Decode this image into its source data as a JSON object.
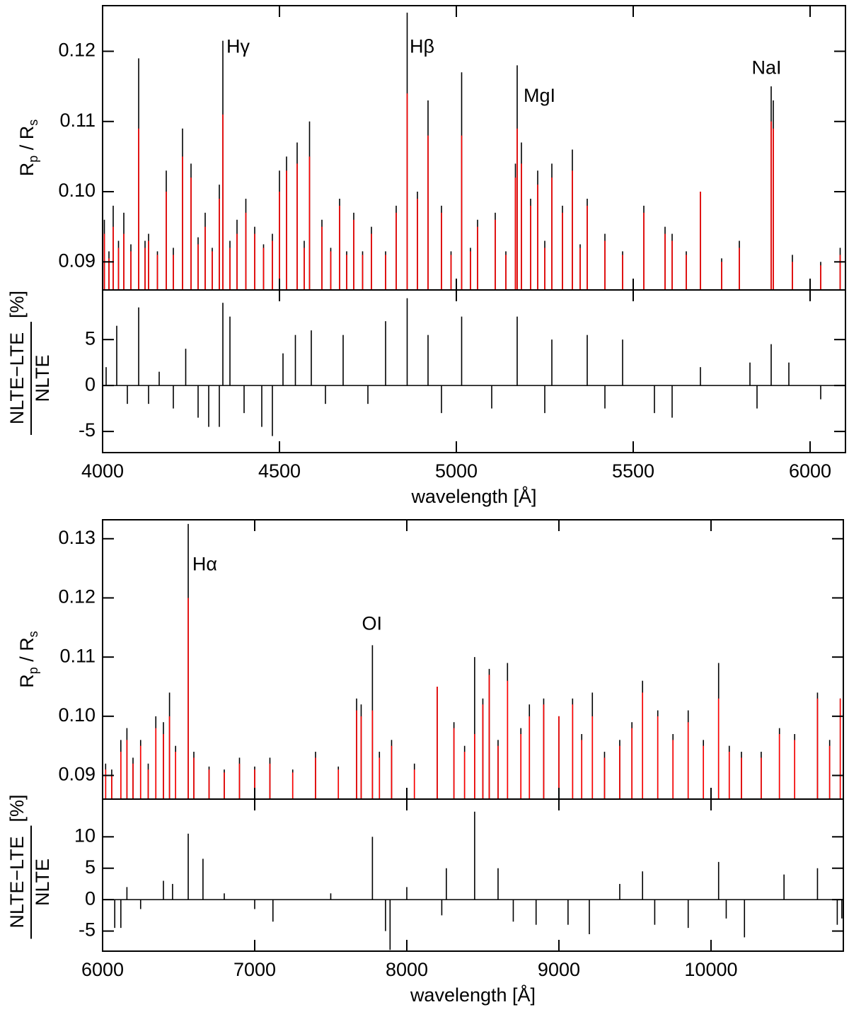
{
  "chart_data": [
    {
      "type": "stem",
      "ylabel": [
        "R",
        "p",
        " / R",
        "s"
      ],
      "xlim": [
        4000,
        6100
      ],
      "ylim": [
        0.086,
        0.1265
      ],
      "yticks": [
        0.09,
        {
          "value": 0.1,
          "label": "0.10"
        },
        0.11,
        0.12
      ],
      "x": [
        4005,
        4018,
        4030,
        4045,
        4060,
        4080,
        4102,
        4120,
        4130,
        4155,
        4180,
        4200,
        4226,
        4250,
        4270,
        4290,
        4310,
        4330,
        4340,
        4360,
        4380,
        4405,
        4430,
        4455,
        4480,
        4500,
        4520,
        4550,
        4570,
        4585,
        4620,
        4645,
        4670,
        4690,
        4710,
        4735,
        4760,
        4800,
        4830,
        4861,
        4890,
        4920,
        4958,
        4985,
        5015,
        5040,
        5060,
        5110,
        5140,
        5167,
        5172,
        5184,
        5210,
        5230,
        5250,
        5270,
        5300,
        5328,
        5350,
        5370,
        5420,
        5470,
        5530,
        5590,
        5610,
        5650,
        5690,
        5750,
        5800,
        5890,
        5896,
        5950,
        6030,
        6085
      ],
      "series": [
        {
          "color": "#000000",
          "values": [
            0.096,
            0.0915,
            0.098,
            0.093,
            0.097,
            0.0925,
            0.119,
            0.093,
            0.094,
            0.0915,
            0.103,
            0.092,
            0.109,
            0.104,
            0.0935,
            0.097,
            0.092,
            0.101,
            0.1215,
            0.093,
            0.096,
            0.099,
            0.095,
            0.0925,
            0.094,
            0.103,
            0.105,
            0.107,
            0.093,
            0.11,
            0.096,
            0.092,
            0.099,
            0.0915,
            0.097,
            0.0915,
            0.095,
            0.0915,
            0.098,
            0.1255,
            0.1,
            0.113,
            0.098,
            0.0915,
            0.117,
            0.092,
            0.096,
            0.097,
            0.0915,
            0.104,
            0.118,
            0.107,
            0.099,
            0.103,
            0.093,
            0.104,
            0.098,
            0.106,
            0.0925,
            0.099,
            0.094,
            0.0915,
            0.098,
            0.095,
            0.094,
            0.0915,
            0.1,
            0.0905,
            0.093,
            0.115,
            0.113,
            0.091,
            0.09,
            0.092
          ]
        },
        {
          "color": "#ff0000",
          "values": [
            0.094,
            0.0905,
            0.095,
            0.092,
            0.094,
            0.0915,
            0.109,
            0.092,
            0.093,
            0.091,
            0.1,
            0.091,
            0.105,
            0.102,
            0.0925,
            0.095,
            0.0915,
            0.099,
            0.111,
            0.092,
            0.094,
            0.097,
            0.094,
            0.092,
            0.093,
            0.1,
            0.103,
            0.104,
            0.092,
            0.105,
            0.095,
            0.0915,
            0.098,
            0.091,
            0.096,
            0.091,
            0.094,
            0.091,
            0.097,
            0.114,
            0.099,
            0.108,
            0.097,
            0.091,
            0.108,
            0.0915,
            0.095,
            0.096,
            0.091,
            0.102,
            0.109,
            0.104,
            0.098,
            0.101,
            0.092,
            0.102,
            0.097,
            0.103,
            0.092,
            0.098,
            0.093,
            0.091,
            0.097,
            0.094,
            0.093,
            0.091,
            0.1,
            0.09,
            0.092,
            0.11,
            0.109,
            0.09,
            0.0895,
            0.091
          ]
        }
      ],
      "annotations": [
        {
          "text": "Hγ",
          "x": 4350,
          "y": 0.1205
        },
        {
          "text": "Hβ",
          "x": 4868,
          "y": 0.1205
        },
        {
          "text": "MgI",
          "x": 5190,
          "y": 0.1135
        },
        {
          "text": "NaI",
          "x": 5835,
          "y": 0.1175
        }
      ]
    },
    {
      "type": "stem",
      "ylabel": {
        "numerator": "NLTE−LTE",
        "denominator": "NLTE",
        "unit": "[%]"
      },
      "xlabel": "wavelength [Å]",
      "xlim": [
        4000,
        6100
      ],
      "ylim": [
        -7.3,
        10.4
      ],
      "xticks": [
        4000,
        4500,
        5000,
        5500,
        6000
      ],
      "yticks": [
        -5,
        0,
        5
      ],
      "x": [
        4010,
        4040,
        4070,
        4102,
        4130,
        4160,
        4200,
        4235,
        4270,
        4300,
        4330,
        4340,
        4360,
        4400,
        4450,
        4480,
        4510,
        4545,
        4590,
        4630,
        4680,
        4750,
        4800,
        4861,
        4920,
        4958,
        5015,
        5100,
        5172,
        5250,
        5270,
        5370,
        5420,
        5470,
        5560,
        5610,
        5690,
        5830,
        5850,
        5890,
        5940,
        6030
      ],
      "series": [
        {
          "color": "#000000",
          "values": [
            2,
            6.5,
            -2,
            8.5,
            -2,
            1.5,
            -2.5,
            4,
            -3.5,
            -4.5,
            -4.5,
            9,
            7.5,
            -3,
            -4.5,
            -5.5,
            3.5,
            5.5,
            6,
            -2,
            5.5,
            -2,
            7,
            9.5,
            5.5,
            -3,
            7.5,
            -2.5,
            7.5,
            -3,
            5,
            5.5,
            -2.5,
            5,
            -3,
            -3.5,
            2,
            2.5,
            -2.5,
            4.5,
            2.5,
            -1.5
          ]
        }
      ]
    },
    {
      "type": "stem",
      "ylabel": [
        "R",
        "p",
        " / R",
        "s"
      ],
      "xlim": [
        6000,
        10870
      ],
      "ylim": [
        0.086,
        0.1332
      ],
      "yticks": [
        0.09,
        {
          "value": 0.1,
          "label": "0.10"
        },
        0.11,
        0.12,
        0.13
      ],
      "x": [
        6020,
        6060,
        6120,
        6160,
        6200,
        6250,
        6300,
        6350,
        6400,
        6440,
        6480,
        6563,
        6600,
        6700,
        6800,
        6900,
        7000,
        7100,
        7250,
        7400,
        7550,
        7670,
        7700,
        7774,
        7820,
        7900,
        8050,
        8200,
        8310,
        8380,
        8446,
        8500,
        8542,
        8600,
        8662,
        8750,
        8806,
        8900,
        9000,
        9090,
        9150,
        9220,
        9300,
        9400,
        9480,
        9550,
        9650,
        9750,
        9850,
        9950,
        10050,
        10120,
        10200,
        10330,
        10450,
        10550,
        10700,
        10780,
        10850
      ],
      "series": [
        {
          "color": "#000000",
          "values": [
            0.092,
            0.091,
            0.096,
            0.098,
            0.093,
            0.096,
            0.092,
            0.1,
            0.099,
            0.104,
            0.095,
            0.1325,
            0.094,
            0.0915,
            0.091,
            0.093,
            0.0915,
            0.093,
            0.091,
            0.094,
            0.0915,
            0.103,
            0.102,
            0.112,
            0.094,
            0.096,
            0.092,
            0.105,
            0.099,
            0.095,
            0.11,
            0.103,
            0.108,
            0.096,
            0.109,
            0.098,
            0.102,
            0.103,
            0.1,
            0.103,
            0.097,
            0.104,
            0.094,
            0.096,
            0.099,
            0.106,
            0.101,
            0.097,
            0.101,
            0.096,
            0.109,
            0.095,
            0.094,
            0.094,
            0.098,
            0.097,
            0.104,
            0.096,
            0.103
          ]
        },
        {
          "color": "#ff0000",
          "values": [
            0.091,
            0.09,
            0.094,
            0.096,
            0.092,
            0.095,
            0.091,
            0.098,
            0.097,
            0.1,
            0.094,
            0.12,
            0.093,
            0.091,
            0.0905,
            0.092,
            0.091,
            0.092,
            0.0905,
            0.093,
            0.091,
            0.101,
            0.1,
            0.101,
            0.093,
            0.095,
            0.091,
            0.105,
            0.098,
            0.094,
            0.097,
            0.102,
            0.107,
            0.095,
            0.106,
            0.097,
            0.1,
            0.102,
            0.1,
            0.102,
            0.096,
            0.1,
            0.093,
            0.095,
            0.098,
            0.104,
            0.1,
            0.096,
            0.099,
            0.095,
            0.103,
            0.094,
            0.093,
            0.093,
            0.097,
            0.096,
            0.103,
            0.095,
            0.103
          ]
        }
      ],
      "annotations": [
        {
          "text": "Hα",
          "x": 6590,
          "y": 0.1255
        },
        {
          "text": "OI",
          "x": 7705,
          "y": 0.1155
        }
      ]
    },
    {
      "type": "stem",
      "ylabel": {
        "numerator": "NLTE−LTE",
        "denominator": "NLTE",
        "unit": "[%]"
      },
      "xlabel": "wavelength [Å]",
      "xlim": [
        6000,
        10870
      ],
      "ylim": [
        -8.2,
        16
      ],
      "xticks": [
        6000,
        7000,
        8000,
        9000,
        10000
      ],
      "yticks": [
        -5,
        0,
        5,
        10
      ],
      "x": [
        6080,
        6120,
        6160,
        6250,
        6400,
        6460,
        6563,
        6660,
        6800,
        7000,
        7120,
        7500,
        7774,
        7860,
        7890,
        8000,
        8230,
        8260,
        8446,
        8600,
        8700,
        8850,
        9060,
        9200,
        9400,
        9550,
        9630,
        9850,
        10050,
        10100,
        10220,
        10480,
        10700,
        10830,
        10860
      ],
      "series": [
        {
          "color": "#000000",
          "values": [
            -4.5,
            -4.5,
            2,
            -1.5,
            3,
            2.5,
            10.5,
            6.5,
            1,
            -1.5,
            -3.5,
            1,
            10,
            -5,
            -8,
            2,
            -2.5,
            5,
            14,
            5,
            -3.5,
            -4,
            -4,
            -5.5,
            2.5,
            4.5,
            -4,
            -4.5,
            6,
            -3,
            -6,
            4,
            5,
            -4,
            -3
          ]
        }
      ]
    }
  ]
}
